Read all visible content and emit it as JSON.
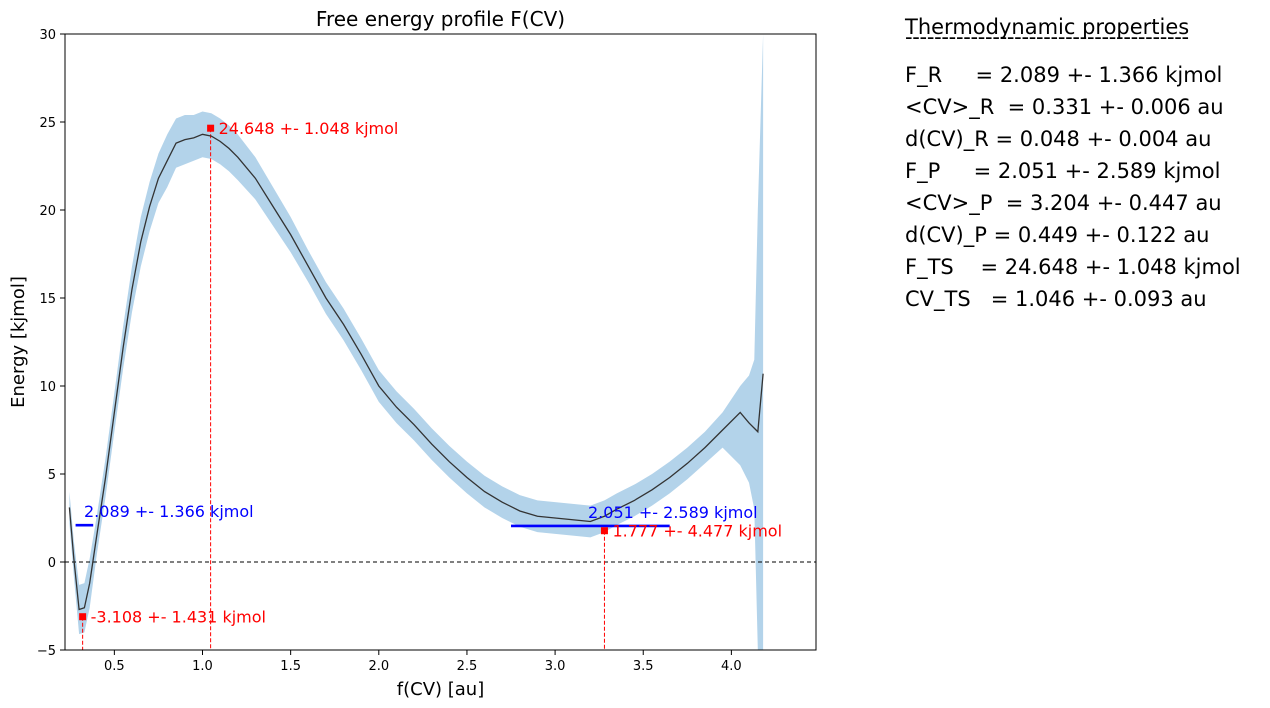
{
  "chart_data": {
    "type": "line",
    "title": "Free energy profile F(CV)",
    "xlabel": "f(CV) [au]",
    "ylabel": "Energy [kjmol]",
    "xlim": [
      0.22,
      4.48
    ],
    "ylim": [
      -5,
      30
    ],
    "xticks": [
      0.5,
      1.0,
      1.5,
      2.0,
      2.5,
      3.0,
      3.5,
      4.0
    ],
    "xtick_labels": [
      "0.5",
      "1.0",
      "1.5",
      "2.0",
      "2.5",
      "3.0",
      "3.5",
      "4.0"
    ],
    "yticks": [
      -5,
      0,
      5,
      10,
      15,
      20,
      25,
      30
    ],
    "ytick_labels": [
      "−5",
      "0",
      "5",
      "10",
      "15",
      "20",
      "25",
      "30"
    ],
    "series": [
      {
        "name": "F(CV)",
        "color": "#333333",
        "x": [
          0.245,
          0.27,
          0.3,
          0.33,
          0.36,
          0.4,
          0.45,
          0.5,
          0.55,
          0.6,
          0.65,
          0.7,
          0.75,
          0.8,
          0.85,
          0.9,
          0.95,
          1.0,
          1.05,
          1.1,
          1.15,
          1.2,
          1.3,
          1.4,
          1.5,
          1.6,
          1.7,
          1.8,
          1.9,
          2.0,
          2.1,
          2.2,
          2.3,
          2.4,
          2.5,
          2.6,
          2.7,
          2.8,
          2.9,
          3.0,
          3.1,
          3.2,
          3.28,
          3.35,
          3.45,
          3.55,
          3.65,
          3.75,
          3.85,
          3.95,
          4.05,
          4.1,
          4.15,
          4.18
        ],
        "y": [
          3.1,
          0.2,
          -2.7,
          -2.6,
          -1.2,
          1.5,
          4.8,
          8.5,
          12.2,
          15.5,
          18.2,
          20.2,
          21.8,
          22.8,
          23.8,
          24.0,
          24.1,
          24.3,
          24.2,
          23.9,
          23.5,
          23.0,
          21.8,
          20.2,
          18.6,
          16.8,
          15.0,
          13.5,
          11.8,
          10.0,
          8.8,
          7.8,
          6.7,
          5.7,
          4.8,
          4.0,
          3.4,
          2.9,
          2.6,
          2.5,
          2.4,
          2.3,
          2.6,
          3.0,
          3.5,
          4.1,
          4.8,
          5.6,
          6.5,
          7.5,
          8.5,
          7.9,
          7.4,
          10.7
        ]
      }
    ],
    "error_band": {
      "color": "#b3d3ea",
      "x": [
        0.245,
        0.27,
        0.3,
        0.33,
        0.36,
        0.4,
        0.45,
        0.5,
        0.55,
        0.6,
        0.65,
        0.7,
        0.75,
        0.8,
        0.85,
        0.9,
        0.95,
        1.0,
        1.05,
        1.1,
        1.15,
        1.2,
        1.3,
        1.4,
        1.5,
        1.6,
        1.7,
        1.8,
        1.9,
        2.0,
        2.1,
        2.2,
        2.3,
        2.4,
        2.5,
        2.6,
        2.7,
        2.8,
        2.9,
        3.0,
        3.1,
        3.2,
        3.28,
        3.35,
        3.45,
        3.55,
        3.65,
        3.75,
        3.85,
        3.95,
        4.05,
        4.1,
        4.13,
        4.15,
        4.18
      ],
      "upper": [
        4.0,
        1.2,
        -1.3,
        -1.2,
        0.2,
        2.6,
        5.9,
        9.6,
        13.4,
        16.8,
        19.6,
        21.6,
        23.2,
        24.3,
        25.2,
        25.4,
        25.4,
        25.6,
        25.5,
        25.2,
        24.8,
        24.3,
        23.0,
        21.3,
        19.6,
        17.7,
        15.9,
        14.4,
        12.7,
        10.9,
        9.7,
        8.7,
        7.6,
        6.6,
        5.7,
        4.9,
        4.3,
        3.8,
        3.5,
        3.4,
        3.3,
        3.2,
        3.5,
        3.9,
        4.4,
        5.0,
        5.7,
        6.5,
        7.4,
        8.5,
        10.0,
        10.6,
        11.5,
        20.0,
        30.0
      ],
      "lower": [
        2.2,
        -0.8,
        -4.1,
        -4.0,
        -2.6,
        0.4,
        3.7,
        7.4,
        11.0,
        14.2,
        16.8,
        18.8,
        20.4,
        21.3,
        22.4,
        22.6,
        22.8,
        23.0,
        22.9,
        22.6,
        22.2,
        21.7,
        20.6,
        19.1,
        17.6,
        15.9,
        14.1,
        12.6,
        10.9,
        9.1,
        7.9,
        6.9,
        5.8,
        4.8,
        3.9,
        3.1,
        2.5,
        2.0,
        1.7,
        1.6,
        1.5,
        1.4,
        1.7,
        2.1,
        2.6,
        3.2,
        3.9,
        4.7,
        5.6,
        6.5,
        5.5,
        4.5,
        3.0,
        -5.0,
        -5.0
      ]
    },
    "zero_line": {
      "y": 0,
      "style": "dashed",
      "color": "#000000"
    },
    "markers": [
      {
        "x": 0.32,
        "y": -3.108,
        "label": "-3.108 +- 1.431 kjmol",
        "color": "#ff0000"
      },
      {
        "x": 1.046,
        "y": 24.648,
        "label": "24.648 +- 1.048 kjmol",
        "color": "#ff0000"
      },
      {
        "x": 3.28,
        "y": 1.777,
        "label": "1.777 +- 4.477 kjmol",
        "color": "#ff0000"
      }
    ],
    "levels": [
      {
        "x0": 0.28,
        "x1": 0.38,
        "y": 2.089,
        "label": "2.089 +- 1.366 kjmol",
        "color": "#0000ff"
      },
      {
        "x0": 2.75,
        "x1": 3.65,
        "y": 2.051,
        "label": "2.051 +- 2.589 kjmol",
        "color": "#0000ff"
      }
    ]
  },
  "side_panel": {
    "title": "Thermodynamic properties",
    "rule": "---------------------------------------",
    "lines": [
      "F_R     = 2.089 +- 1.366 kjmol",
      "<CV>_R  = 0.331 +- 0.006 au",
      "d(CV)_R = 0.048 +- 0.004 au",
      "F_P     = 2.051 +- 2.589 kjmol",
      "<CV>_P  = 3.204 +- 0.447 au",
      "d(CV)_P = 0.449 +- 0.122 au",
      "F_TS    = 24.648 +- 1.048 kjmol",
      "CV_TS   = 1.046 +- 0.093 au"
    ]
  }
}
